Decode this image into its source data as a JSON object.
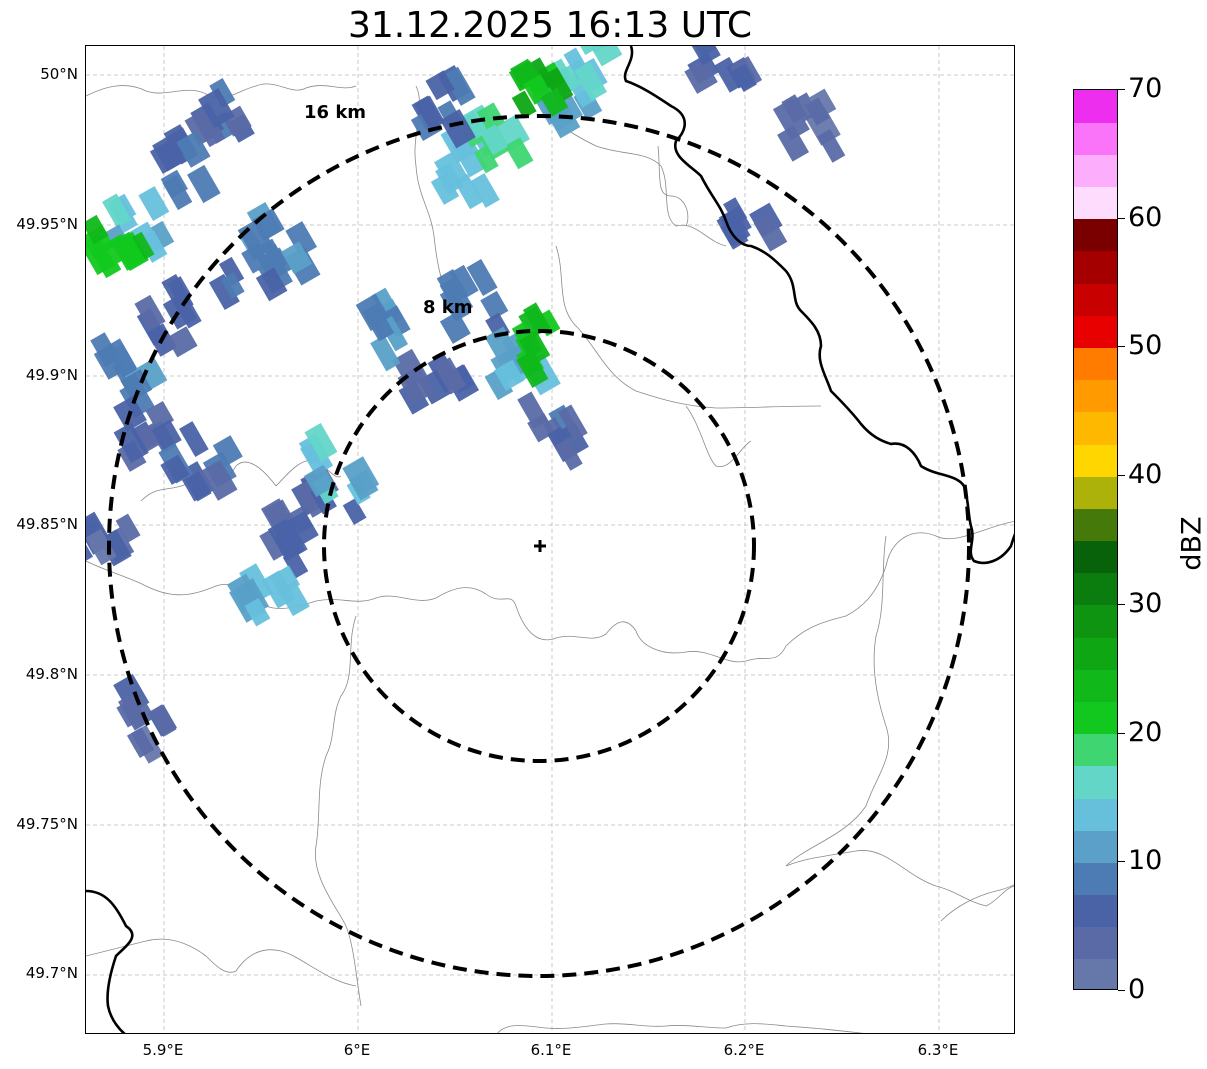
{
  "title": "31.12.2025 16:13 UTC",
  "lat_labels": [
    "50°N",
    "49.95°N",
    "49.9°N",
    "49.85°N",
    "49.8°N",
    "49.75°N",
    "49.7°N"
  ],
  "lon_labels": [
    "5.9°E",
    "6°E",
    "6.1°E",
    "6.2°E",
    "6.3°E"
  ],
  "ring_labels": [
    "16 km",
    "8 km"
  ],
  "map": {
    "extent": {
      "lon_min": 5.86,
      "lon_max": 6.34,
      "lat_min": 49.68,
      "lat_max": 50.01
    },
    "radar_site": {
      "lon": 6.095,
      "lat": 49.843
    },
    "rings_km": [
      8,
      16
    ],
    "gridlines": "dashed grey"
  },
  "colorbar": {
    "label": "dBZ",
    "tick_labels": [
      "0",
      "10",
      "20",
      "30",
      "40",
      "50",
      "60",
      "70"
    ],
    "min": 0,
    "max": 70,
    "step": 2.5,
    "colors": [
      "#6677aa",
      "#5a6aa6",
      "#4a62a6",
      "#4d7bb3",
      "#5aa0c8",
      "#66c0dc",
      "#63d6c8",
      "#3fd672",
      "#12c81e",
      "#10b81a",
      "#0fa614",
      "#0e9410",
      "#0b7c0e",
      "#08620a",
      "#457a0a",
      "#acb20a",
      "#ffd600",
      "#ffb800",
      "#ff9a00",
      "#ff7c00",
      "#e80000",
      "#c80000",
      "#a40000",
      "#7a0000",
      "#fddcfd",
      "#fcaefc",
      "#fa74fa",
      "#ee2eee"
    ]
  },
  "echo_cells": [
    {
      "lon": 6.06,
      "lat": 49.925,
      "dbz": 8
    },
    {
      "lon": 6.085,
      "lat": 49.905,
      "dbz": 12
    },
    {
      "lon": 6.1,
      "lat": 49.88,
      "dbz": 6
    },
    {
      "lon": 6.095,
      "lat": 49.91,
      "dbz": 22
    },
    {
      "lon": 6.04,
      "lat": 49.9,
      "dbz": 5
    },
    {
      "lon": 6.02,
      "lat": 49.915,
      "dbz": 10
    },
    {
      "lon": 6.055,
      "lat": 49.97,
      "dbz": 14
    },
    {
      "lon": 6.07,
      "lat": 49.98,
      "dbz": 18
    },
    {
      "lon": 6.05,
      "lat": 49.99,
      "dbz": 8
    },
    {
      "lon": 6.11,
      "lat": 49.99,
      "dbz": 12
    },
    {
      "lon": 6.115,
      "lat": 50.005,
      "dbz": 16
    },
    {
      "lon": 6.1,
      "lat": 49.995,
      "dbz": 24
    },
    {
      "lon": 6.2,
      "lat": 49.955,
      "dbz": 5
    },
    {
      "lon": 6.235,
      "lat": 49.985,
      "dbz": 4
    },
    {
      "lon": 6.19,
      "lat": 50.005,
      "dbz": 4
    },
    {
      "lon": 5.89,
      "lat": 49.95,
      "dbz": 14
    },
    {
      "lon": 5.875,
      "lat": 49.945,
      "dbz": 22
    },
    {
      "lon": 5.9,
      "lat": 49.92,
      "dbz": 6
    },
    {
      "lon": 5.88,
      "lat": 49.9,
      "dbz": 10
    },
    {
      "lon": 5.895,
      "lat": 49.88,
      "dbz": 4
    },
    {
      "lon": 5.92,
      "lat": 49.87,
      "dbz": 6
    },
    {
      "lon": 5.945,
      "lat": 49.935,
      "dbz": 8
    },
    {
      "lon": 5.96,
      "lat": 49.945,
      "dbz": 10
    },
    {
      "lon": 5.93,
      "lat": 49.99,
      "dbz": 6
    },
    {
      "lon": 5.915,
      "lat": 49.97,
      "dbz": 8
    },
    {
      "lon": 5.96,
      "lat": 49.845,
      "dbz": 5
    },
    {
      "lon": 5.955,
      "lat": 49.83,
      "dbz": 12
    },
    {
      "lon": 5.985,
      "lat": 49.855,
      "dbz": 6
    },
    {
      "lon": 5.99,
      "lat": 49.87,
      "dbz": 14
    },
    {
      "lon": 5.87,
      "lat": 49.84,
      "dbz": 4
    },
    {
      "lon": 5.895,
      "lat": 49.785,
      "dbz": 4
    }
  ]
}
